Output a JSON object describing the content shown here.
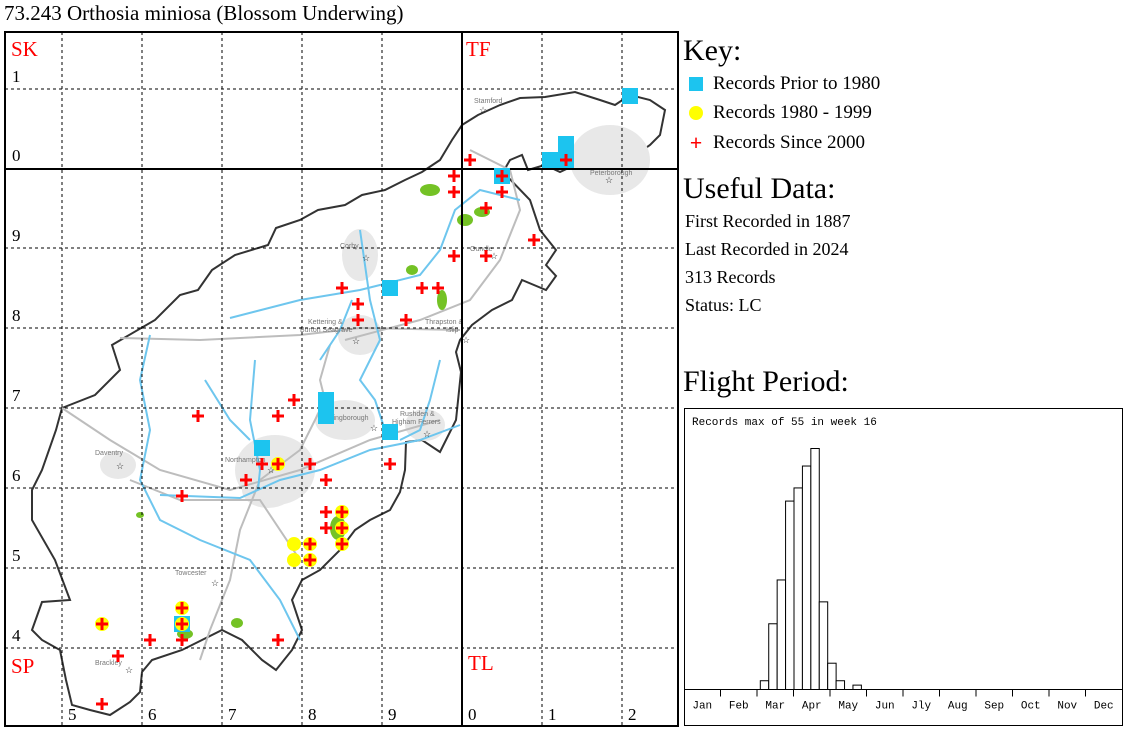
{
  "title": "73.243 Orthosia miniosa (Blossom Underwing)",
  "colors": {
    "prior_1980": "#1cc4ef",
    "r1980_1999": "#ffff00",
    "since_2000": "#ff0000",
    "grid_label": "#ff0000",
    "river": "#6ec6ee",
    "road": "#bdbdbd",
    "woodland": "#74c225"
  },
  "map": {
    "grid_squares": {
      "nw": "SK",
      "ne": "TF",
      "sw": "SP",
      "se": "TL"
    },
    "row_labels": [
      "1",
      "0",
      "9",
      "8",
      "7",
      "6",
      "5",
      "4"
    ],
    "col_labels": [
      "5",
      "6",
      "7",
      "8",
      "9",
      "0",
      "1",
      "2"
    ],
    "towns": [
      "Stamford",
      "Peterborough",
      "Corby",
      "Oundle",
      "Kettering &",
      "Burton Seagrave",
      "Thrapston &",
      "Islip",
      "Wellingborough",
      "Rushden &",
      "Higham Ferrers",
      "Daventry",
      "Northampton",
      "Towcester",
      "Brackley"
    ],
    "records_since_2000_km": [
      [
        501,
        301
      ],
      [
        513,
        301
      ],
      [
        505,
        299
      ],
      [
        499,
        299
      ],
      [
        499,
        297
      ],
      [
        505,
        297
      ],
      [
        503,
        295
      ],
      [
        509,
        291
      ],
      [
        499,
        289
      ],
      [
        503,
        289
      ],
      [
        485,
        285
      ],
      [
        495,
        285
      ],
      [
        497,
        285
      ],
      [
        487,
        283
      ],
      [
        487,
        281
      ],
      [
        493,
        281
      ],
      [
        479,
        271
      ],
      [
        467,
        269
      ],
      [
        477,
        269
      ],
      [
        475,
        263
      ],
      [
        477,
        263
      ],
      [
        481,
        263
      ],
      [
        491,
        263
      ],
      [
        473,
        261
      ],
      [
        483,
        261
      ],
      [
        465,
        259
      ],
      [
        483,
        257
      ],
      [
        485,
        257
      ],
      [
        483,
        255
      ],
      [
        485,
        255
      ],
      [
        485,
        253
      ],
      [
        481,
        253
      ],
      [
        481,
        251
      ],
      [
        465,
        245
      ],
      [
        465,
        243
      ],
      [
        461,
        241
      ],
      [
        465,
        241
      ],
      [
        477,
        241
      ],
      [
        455,
        243
      ],
      [
        457,
        239
      ],
      [
        455,
        233
      ]
    ],
    "records_1980_1999_km": [
      [
        479,
        253
      ],
      [
        479,
        251
      ],
      [
        477,
        263
      ],
      [
        485,
        257
      ],
      [
        485,
        255
      ],
      [
        485,
        253
      ],
      [
        455,
        243
      ],
      [
        465,
        245
      ],
      [
        465,
        243
      ],
      [
        481,
        253
      ],
      [
        481,
        251
      ]
    ],
    "records_prior_1980_km": [
      [
        521,
        309
      ],
      [
        511,
        301
      ],
      [
        513,
        303
      ],
      [
        513,
        301
      ],
      [
        505,
        299
      ],
      [
        491,
        285
      ],
      [
        483,
        271
      ],
      [
        483,
        269
      ],
      [
        475,
        265
      ],
      [
        491,
        267
      ],
      [
        465,
        243
      ]
    ]
  },
  "key": {
    "heading": "Key:",
    "items": [
      "Records Prior to 1980",
      "Records 1980 - 1999",
      "Records Since 2000"
    ]
  },
  "useful": {
    "heading": "Useful Data:",
    "first": "First Recorded in 1887",
    "last": "Last Recorded in 2024",
    "count": "313 Records",
    "status": "Status: LC"
  },
  "flight": {
    "heading": "Flight Period:"
  },
  "chart_data": {
    "type": "bar",
    "title": "Records max of 55 in week 16",
    "xlabel": "",
    "ylabel": "",
    "categories": [
      "Jan",
      "Feb",
      "Mar",
      "Apr",
      "May",
      "Jun",
      "Jly",
      "Aug",
      "Sep",
      "Oct",
      "Nov",
      "Dec"
    ],
    "weeks": [
      10,
      11,
      12,
      13,
      14,
      15,
      16,
      17,
      18,
      19,
      20,
      21
    ],
    "values": [
      2,
      15,
      25,
      43,
      46,
      51,
      55,
      20,
      6,
      2,
      0,
      1
    ],
    "ylim": [
      0,
      55
    ],
    "grid": false
  }
}
